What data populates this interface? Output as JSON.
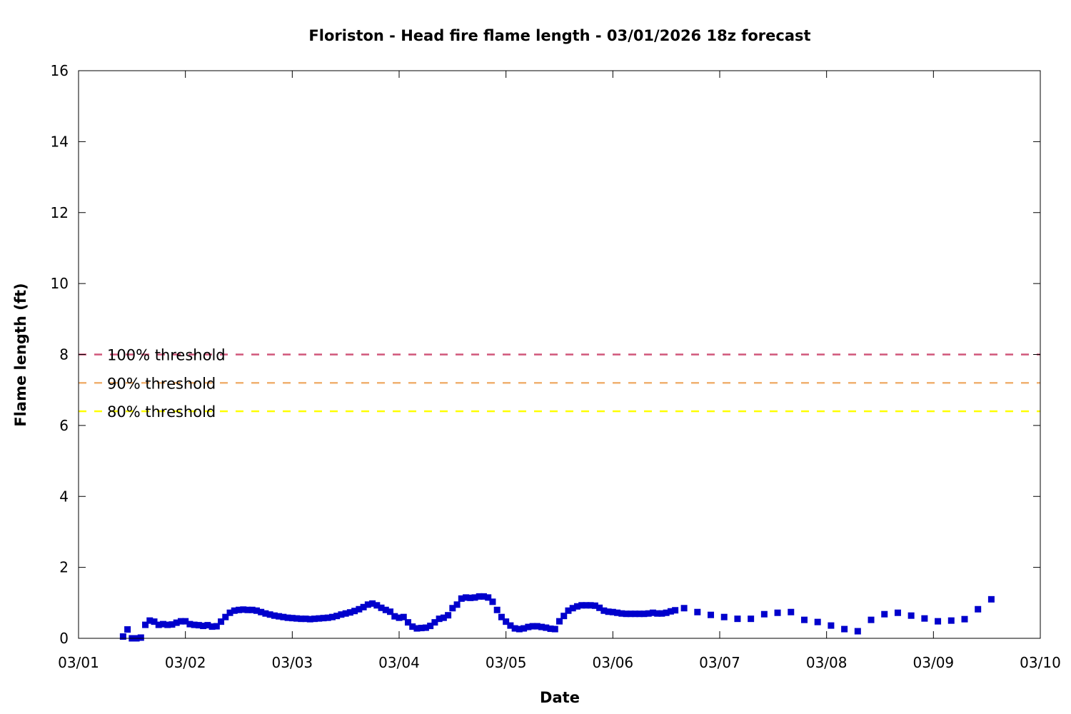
{
  "chart_data": {
    "type": "scatter",
    "title": "Floriston - Head fire flame length - 03/01/2026 18z forecast",
    "xlabel": "Date",
    "ylabel": "Flame length (ft)",
    "xlim": [
      "03/01",
      "03/10"
    ],
    "ylim": [
      0,
      16
    ],
    "x_ticks": [
      "03/01",
      "03/02",
      "03/03",
      "03/04",
      "03/05",
      "03/06",
      "03/07",
      "03/08",
      "03/09",
      "03/10"
    ],
    "y_ticks": [
      0,
      2,
      4,
      6,
      8,
      10,
      12,
      14,
      16
    ],
    "grid": false,
    "colors": {
      "points": "#0000cc",
      "threshold_100": "#d0577a",
      "threshold_90": "#f0b070",
      "threshold_80": "#ffff00"
    },
    "thresholds": [
      {
        "label": "100% threshold",
        "value": 8.0,
        "color": "#d0577a"
      },
      {
        "label": "90% threshold",
        "value": 7.2,
        "color": "#f0b070"
      },
      {
        "label": "80% threshold",
        "value": 6.4,
        "color": "#ffff00"
      }
    ],
    "series": [
      {
        "points": [
          [
            "03/01 10:00",
            0.05
          ],
          [
            "03/01 11:00",
            0.25
          ],
          [
            "03/01 12:00",
            0.0
          ],
          [
            "03/01 13:00",
            0.0
          ],
          [
            "03/01 14:00",
            0.02
          ],
          [
            "03/01 15:00",
            0.38
          ],
          [
            "03/01 16:00",
            0.5
          ],
          [
            "03/01 17:00",
            0.47
          ],
          [
            "03/01 18:00",
            0.38
          ],
          [
            "03/01 19:00",
            0.4
          ],
          [
            "03/01 20:00",
            0.38
          ],
          [
            "03/01 21:00",
            0.39
          ],
          [
            "03/01 22:00",
            0.44
          ],
          [
            "03/01 23:00",
            0.48
          ],
          [
            "03/02 00:00",
            0.48
          ],
          [
            "03/02 01:00",
            0.4
          ],
          [
            "03/02 02:00",
            0.38
          ],
          [
            "03/02 03:00",
            0.37
          ],
          [
            "03/02 04:00",
            0.35
          ],
          [
            "03/02 05:00",
            0.37
          ],
          [
            "03/02 06:00",
            0.33
          ],
          [
            "03/02 07:00",
            0.34
          ],
          [
            "03/02 08:00",
            0.47
          ],
          [
            "03/02 09:00",
            0.6
          ],
          [
            "03/02 10:00",
            0.72
          ],
          [
            "03/02 11:00",
            0.78
          ],
          [
            "03/02 12:00",
            0.8
          ],
          [
            "03/02 13:00",
            0.81
          ],
          [
            "03/02 14:00",
            0.8
          ],
          [
            "03/02 15:00",
            0.8
          ],
          [
            "03/02 16:00",
            0.78
          ],
          [
            "03/02 17:00",
            0.74
          ],
          [
            "03/02 18:00",
            0.7
          ],
          [
            "03/02 19:00",
            0.67
          ],
          [
            "03/02 20:00",
            0.64
          ],
          [
            "03/02 21:00",
            0.62
          ],
          [
            "03/02 22:00",
            0.6
          ],
          [
            "03/02 23:00",
            0.58
          ],
          [
            "03/03 00:00",
            0.57
          ],
          [
            "03/03 01:00",
            0.56
          ],
          [
            "03/03 02:00",
            0.55
          ],
          [
            "03/03 03:00",
            0.55
          ],
          [
            "03/03 04:00",
            0.54
          ],
          [
            "03/03 05:00",
            0.55
          ],
          [
            "03/03 06:00",
            0.56
          ],
          [
            "03/03 07:00",
            0.57
          ],
          [
            "03/03 08:00",
            0.58
          ],
          [
            "03/03 09:00",
            0.6
          ],
          [
            "03/03 10:00",
            0.63
          ],
          [
            "03/03 11:00",
            0.67
          ],
          [
            "03/03 12:00",
            0.7
          ],
          [
            "03/03 13:00",
            0.73
          ],
          [
            "03/03 14:00",
            0.77
          ],
          [
            "03/03 15:00",
            0.82
          ],
          [
            "03/03 16:00",
            0.88
          ],
          [
            "03/03 17:00",
            0.95
          ],
          [
            "03/03 18:00",
            0.98
          ],
          [
            "03/03 19:00",
            0.93
          ],
          [
            "03/03 20:00",
            0.86
          ],
          [
            "03/03 21:00",
            0.8
          ],
          [
            "03/03 22:00",
            0.75
          ],
          [
            "03/03 23:00",
            0.62
          ],
          [
            "03/04 00:00",
            0.58
          ],
          [
            "03/04 01:00",
            0.6
          ],
          [
            "03/04 02:00",
            0.45
          ],
          [
            "03/04 03:00",
            0.33
          ],
          [
            "03/04 04:00",
            0.28
          ],
          [
            "03/04 05:00",
            0.29
          ],
          [
            "03/04 06:00",
            0.3
          ],
          [
            "03/04 07:00",
            0.35
          ],
          [
            "03/04 08:00",
            0.45
          ],
          [
            "03/04 09:00",
            0.55
          ],
          [
            "03/04 10:00",
            0.58
          ],
          [
            "03/04 11:00",
            0.65
          ],
          [
            "03/04 12:00",
            0.85
          ],
          [
            "03/04 13:00",
            0.95
          ],
          [
            "03/04 14:00",
            1.12
          ],
          [
            "03/04 15:00",
            1.15
          ],
          [
            "03/04 16:00",
            1.14
          ],
          [
            "03/04 17:00",
            1.15
          ],
          [
            "03/04 18:00",
            1.18
          ],
          [
            "03/04 19:00",
            1.18
          ],
          [
            "03/04 20:00",
            1.15
          ],
          [
            "03/04 21:00",
            1.03
          ],
          [
            "03/04 22:00",
            0.8
          ],
          [
            "03/04 23:00",
            0.6
          ],
          [
            "03/05 00:00",
            0.47
          ],
          [
            "03/05 01:00",
            0.36
          ],
          [
            "03/05 02:00",
            0.28
          ],
          [
            "03/05 03:00",
            0.26
          ],
          [
            "03/05 04:00",
            0.28
          ],
          [
            "03/05 05:00",
            0.32
          ],
          [
            "03/05 06:00",
            0.34
          ],
          [
            "03/05 07:00",
            0.34
          ],
          [
            "03/05 08:00",
            0.32
          ],
          [
            "03/05 09:00",
            0.3
          ],
          [
            "03/05 10:00",
            0.27
          ],
          [
            "03/05 11:00",
            0.26
          ],
          [
            "03/05 12:00",
            0.48
          ],
          [
            "03/05 13:00",
            0.63
          ],
          [
            "03/05 14:00",
            0.78
          ],
          [
            "03/05 15:00",
            0.85
          ],
          [
            "03/05 16:00",
            0.9
          ],
          [
            "03/05 17:00",
            0.93
          ],
          [
            "03/05 18:00",
            0.93
          ],
          [
            "03/05 19:00",
            0.93
          ],
          [
            "03/05 20:00",
            0.92
          ],
          [
            "03/05 21:00",
            0.86
          ],
          [
            "03/05 22:00",
            0.78
          ],
          [
            "03/05 23:00",
            0.75
          ],
          [
            "03/06 00:00",
            0.74
          ],
          [
            "03/06 01:00",
            0.72
          ],
          [
            "03/06 02:00",
            0.7
          ],
          [
            "03/06 03:00",
            0.69
          ],
          [
            "03/06 04:00",
            0.69
          ],
          [
            "03/06 05:00",
            0.69
          ],
          [
            "03/06 06:00",
            0.69
          ],
          [
            "03/06 07:00",
            0.69
          ],
          [
            "03/06 08:00",
            0.7
          ],
          [
            "03/06 09:00",
            0.72
          ],
          [
            "03/06 10:00",
            0.7
          ],
          [
            "03/06 11:00",
            0.7
          ],
          [
            "03/06 12:00",
            0.72
          ],
          [
            "03/06 13:00",
            0.76
          ],
          [
            "03/06 14:00",
            0.79
          ],
          [
            "03/06 16:00",
            0.85
          ],
          [
            "03/06 19:00",
            0.74
          ],
          [
            "03/06 22:00",
            0.66
          ],
          [
            "03/07 01:00",
            0.6
          ],
          [
            "03/07 04:00",
            0.55
          ],
          [
            "03/07 07:00",
            0.55
          ],
          [
            "03/07 10:00",
            0.68
          ],
          [
            "03/07 13:00",
            0.72
          ],
          [
            "03/07 16:00",
            0.74
          ],
          [
            "03/07 19:00",
            0.52
          ],
          [
            "03/07 22:00",
            0.46
          ],
          [
            "03/08 01:00",
            0.36
          ],
          [
            "03/08 04:00",
            0.26
          ],
          [
            "03/08 07:00",
            0.2
          ],
          [
            "03/08 10:00",
            0.52
          ],
          [
            "03/08 13:00",
            0.68
          ],
          [
            "03/08 16:00",
            0.72
          ],
          [
            "03/08 19:00",
            0.64
          ],
          [
            "03/08 22:00",
            0.56
          ],
          [
            "03/09 01:00",
            0.48
          ],
          [
            "03/09 04:00",
            0.5
          ],
          [
            "03/09 07:00",
            0.54
          ],
          [
            "03/09 10:00",
            0.82
          ],
          [
            "03/09 13:00",
            1.1
          ]
        ]
      }
    ]
  }
}
